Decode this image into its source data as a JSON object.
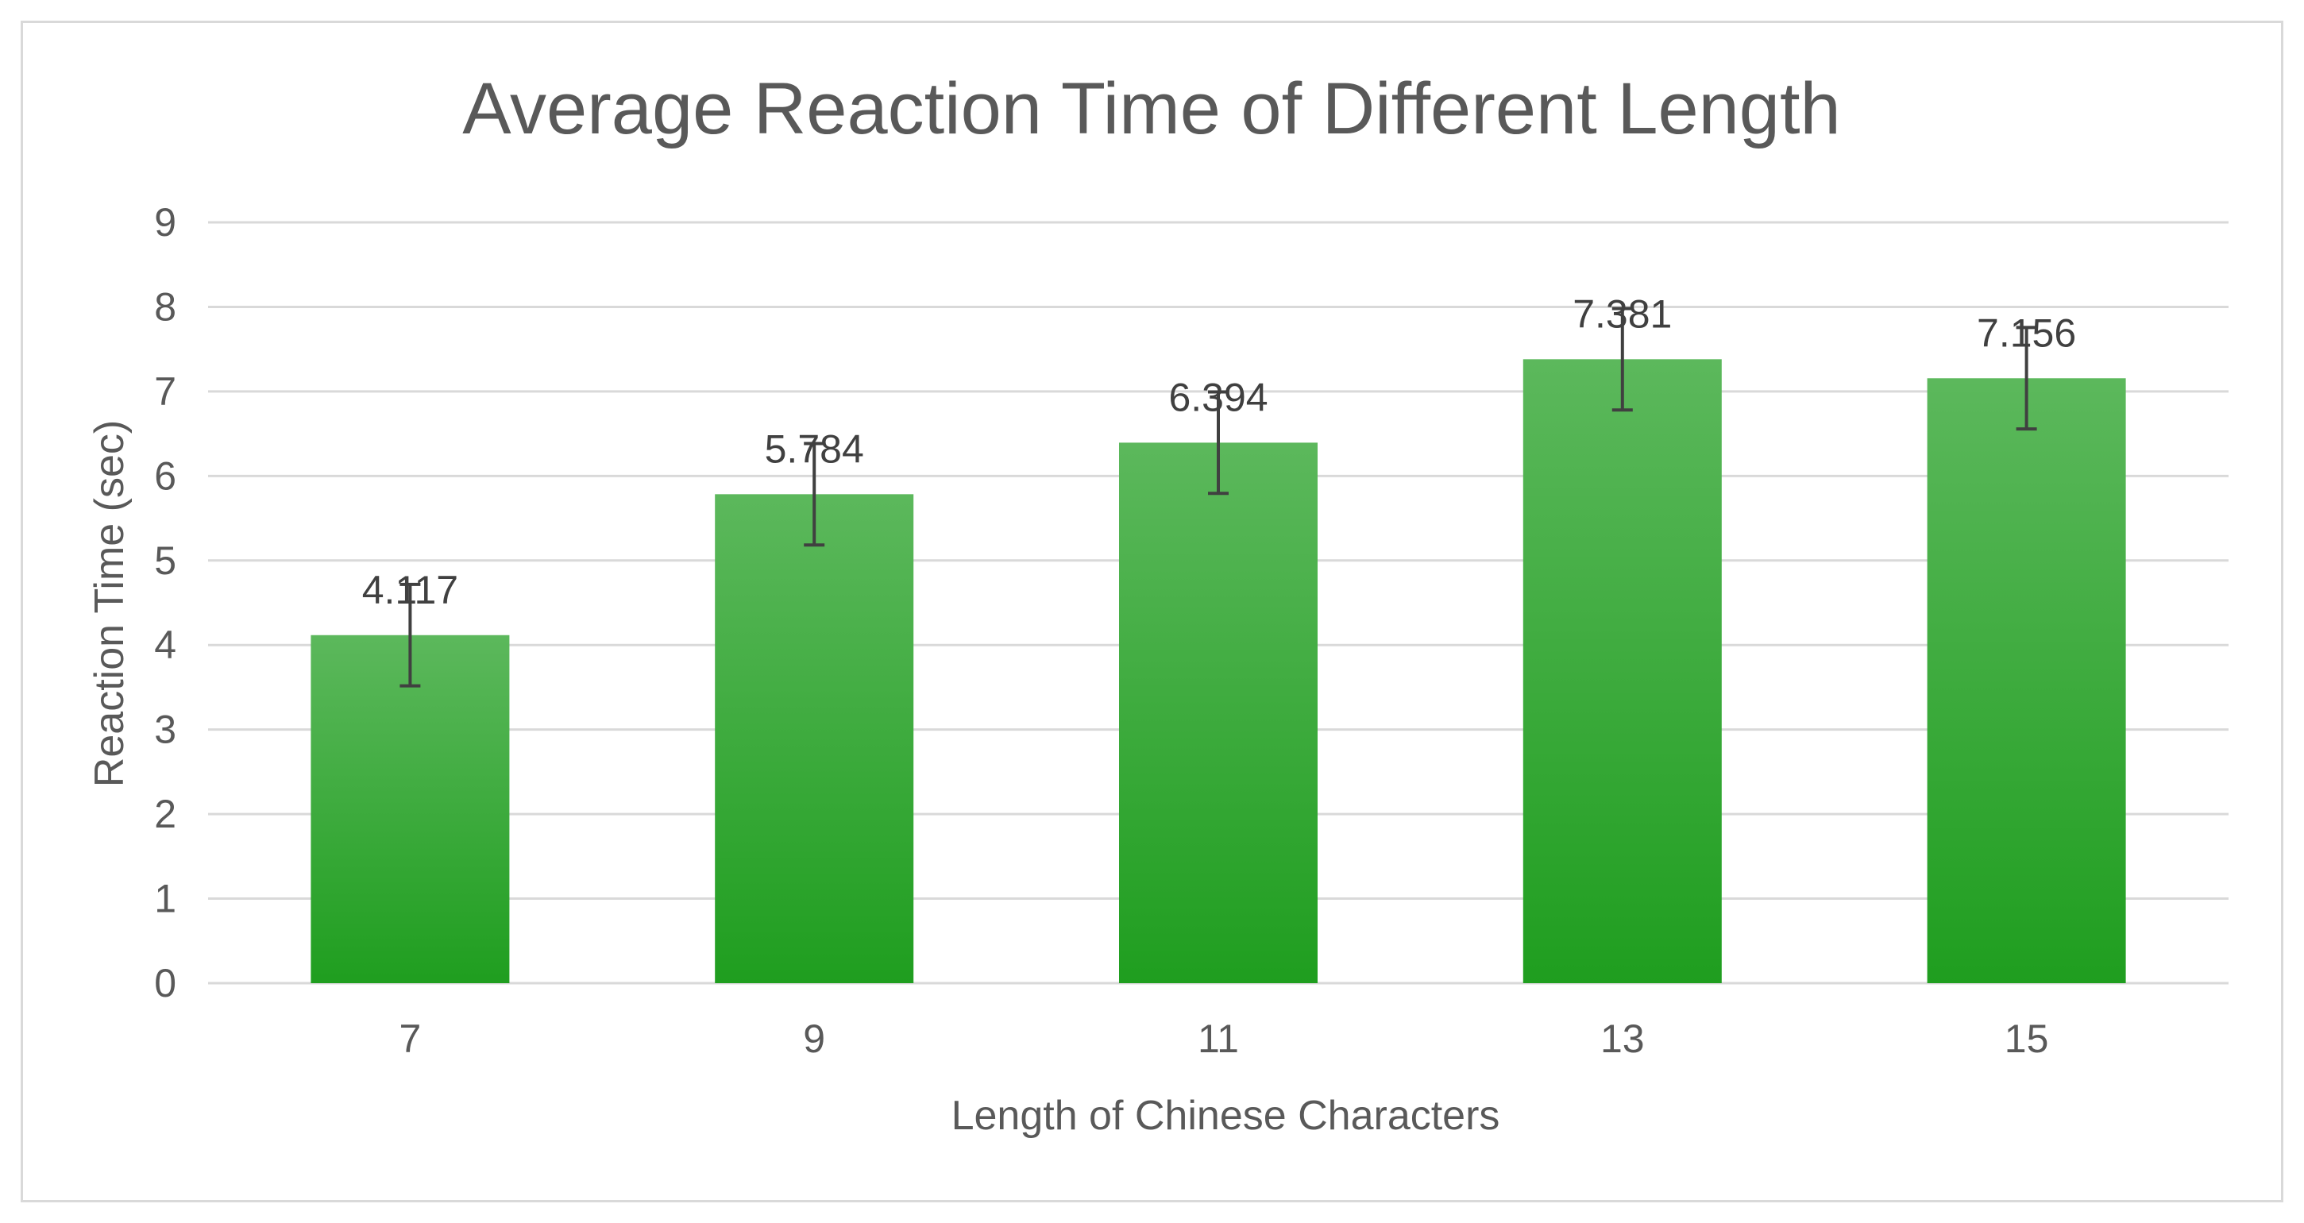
{
  "chart_data": {
    "type": "bar",
    "title": "Average Reaction Time of Different Length",
    "xlabel": "Length of Chinese Characters",
    "ylabel": "Reaction Time (sec)",
    "categories": [
      "7",
      "9",
      "11",
      "13",
      "15"
    ],
    "series": [
      {
        "values": [
          4.117,
          5.784,
          6.394,
          7.381,
          7.156
        ],
        "data_labels": [
          "4.117",
          "5.784",
          "6.394",
          "7.381",
          "7.156"
        ],
        "error_plus_minus": [
          0.6,
          0.6,
          0.6,
          0.6,
          0.6
        ]
      }
    ],
    "ylim": [
      0,
      9
    ],
    "y_ticks": [
      0,
      1,
      2,
      3,
      4,
      5,
      6,
      7,
      8,
      9
    ],
    "grid": true,
    "legend": "none",
    "colors": {
      "bar_top": "#5cb85c",
      "bar_bottom": "#1f9e1f",
      "gridline": "#d9d9d9",
      "text": "#595959",
      "error_bar": "#404040"
    }
  }
}
